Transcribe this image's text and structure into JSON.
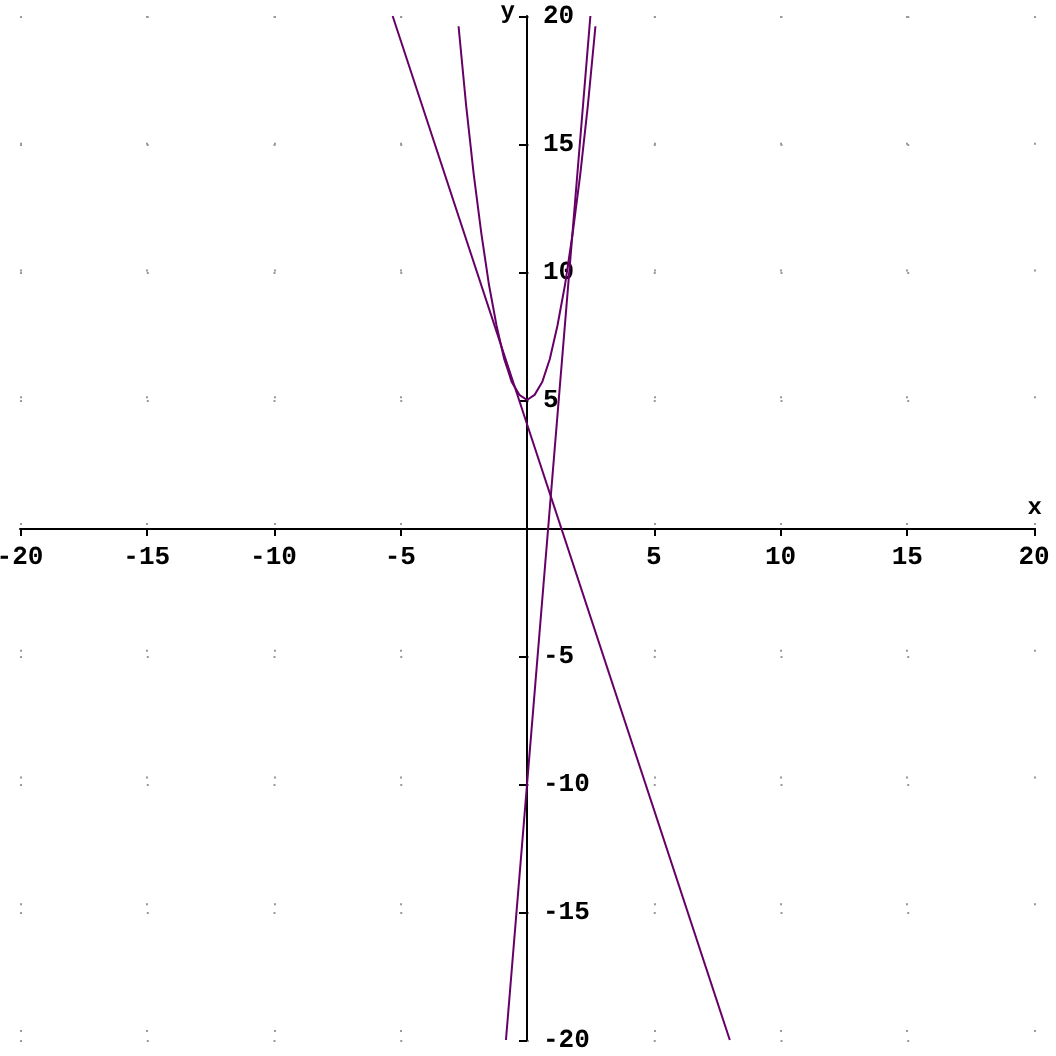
{
  "chart_data": {
    "type": "line",
    "xlabel": "x",
    "ylabel": "y",
    "xlim": [
      -20,
      20
    ],
    "ylim": [
      -20,
      20
    ],
    "xticks": [
      -20,
      -15,
      -10,
      -5,
      5,
      10,
      15,
      20
    ],
    "yticks": [
      -20,
      -15,
      -10,
      -5,
      5,
      10,
      15,
      20
    ],
    "grid": true,
    "marker": "none",
    "line_style": "solid",
    "series": [
      {
        "color": "#660066",
        "x": [
          -2.7,
          -2.4,
          -2.1,
          -1.8,
          -1.5,
          -1.2,
          -0.9,
          -0.6,
          -0.3,
          0,
          0.3,
          0.6,
          0.9,
          1.2,
          1.5,
          1.8,
          2.1,
          2.4,
          2.7
        ],
        "values": [
          19.6,
          16.5,
          13.8,
          11.5,
          9.5,
          7.9,
          6.6,
          5.7,
          5.2,
          5,
          5.2,
          5.7,
          6.6,
          7.9,
          9.5,
          11.5,
          13.8,
          16.5,
          19.6
        ]
      },
      {
        "color": "#660066",
        "x": [
          -0.83,
          2.5
        ],
        "values": [
          -20,
          20
        ]
      },
      {
        "color": "#660066",
        "x": [
          -5.3,
          8
        ],
        "values": [
          20,
          -20
        ]
      }
    ]
  }
}
